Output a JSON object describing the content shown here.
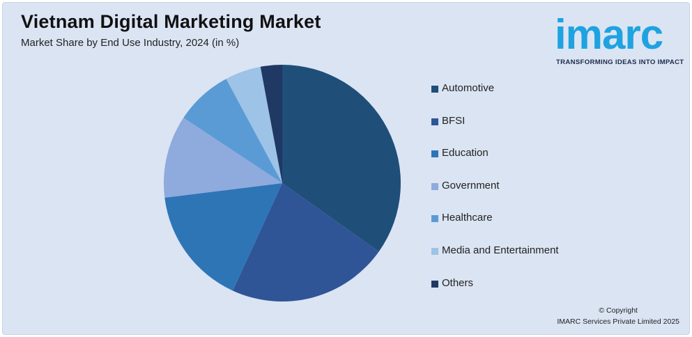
{
  "header": {
    "title": "Vietnam Digital Marketing Market",
    "subtitle": "Market Share by End Use Industry, 2024 (in %)"
  },
  "logo": {
    "name": "imarc",
    "tagline": "TRANSFORMING IDEAS INTO IMPACT",
    "color": "#1fa3e0"
  },
  "footer": {
    "copyright_line1": "© Copyright",
    "copyright_line2": "IMARC Services Private Limited 2025"
  },
  "chart_data": {
    "type": "pie",
    "title": "Vietnam Digital Marketing Market",
    "subtitle": "Market Share by End Use Industry, 2024 (in %)",
    "legend_position": "right",
    "slices": [
      {
        "label": "Automotive",
        "value": 35.5,
        "color": "#1f4e79"
      },
      {
        "label": "BFSI",
        "value": 22.5,
        "color": "#2f5597"
      },
      {
        "label": "Education",
        "value": 16.5,
        "color": "#2e75b6"
      },
      {
        "label": "Government",
        "value": 11.5,
        "color": "#8faadc"
      },
      {
        "label": "Healthcare",
        "value": 8.0,
        "color": "#5b9bd5"
      },
      {
        "label": "Media and Entertainment",
        "value": 5.0,
        "color": "#9dc3e6"
      },
      {
        "label": "Others",
        "value": 3.0,
        "color": "#203864"
      }
    ]
  }
}
